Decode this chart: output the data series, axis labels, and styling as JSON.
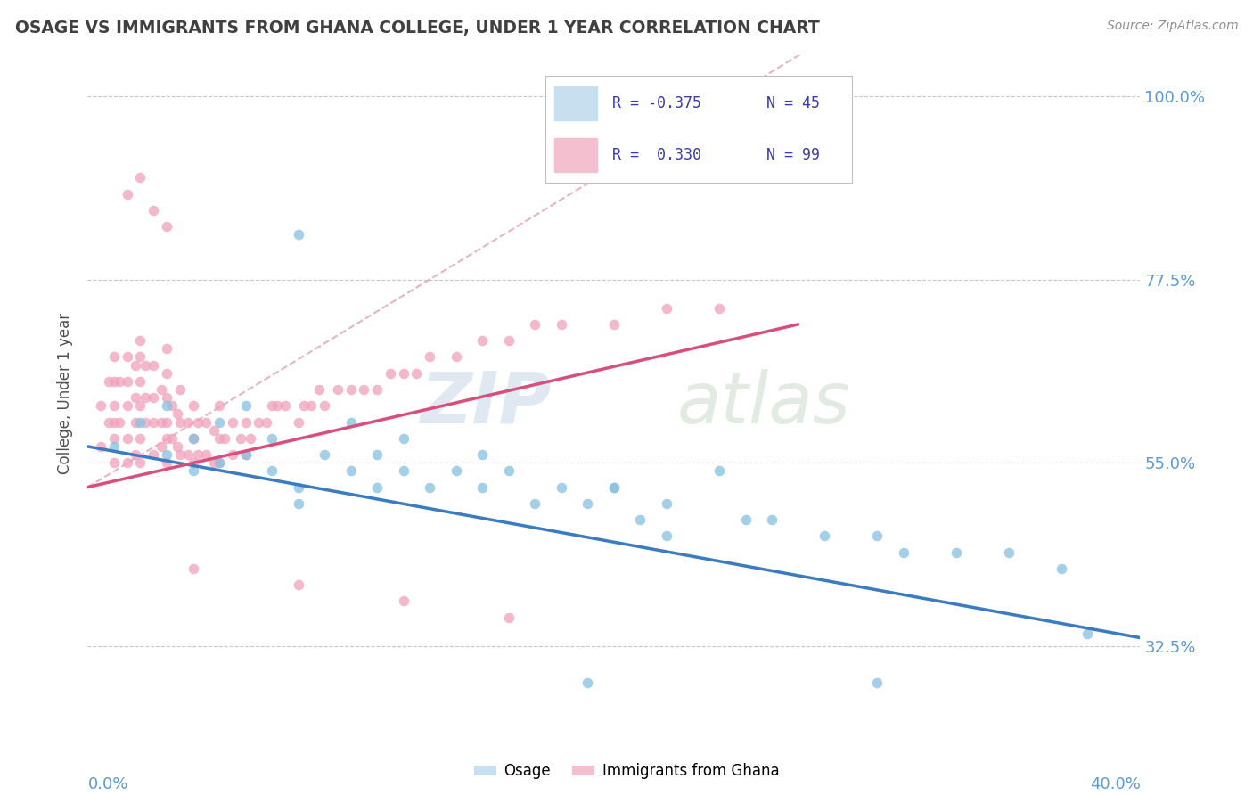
{
  "title": "OSAGE VS IMMIGRANTS FROM GHANA COLLEGE, UNDER 1 YEAR CORRELATION CHART",
  "source": "Source: ZipAtlas.com",
  "ylabel": "College, Under 1 year",
  "yticks": [
    "32.5%",
    "55.0%",
    "77.5%",
    "100.0%"
  ],
  "ytick_vals": [
    0.325,
    0.55,
    0.775,
    1.0
  ],
  "xlim": [
    0.0,
    0.4
  ],
  "ylim": [
    0.22,
    1.05
  ],
  "blue_color": "#85c1e0",
  "pink_color": "#f0a0bc",
  "blue_line_color": "#3b7bbf",
  "pink_line_color": "#d94f7c",
  "axis_label_color": "#5b9bd5",
  "title_color": "#404040",
  "watermark_zip_color": "#c8d8e8",
  "watermark_atlas_color": "#c0d4c0"
}
